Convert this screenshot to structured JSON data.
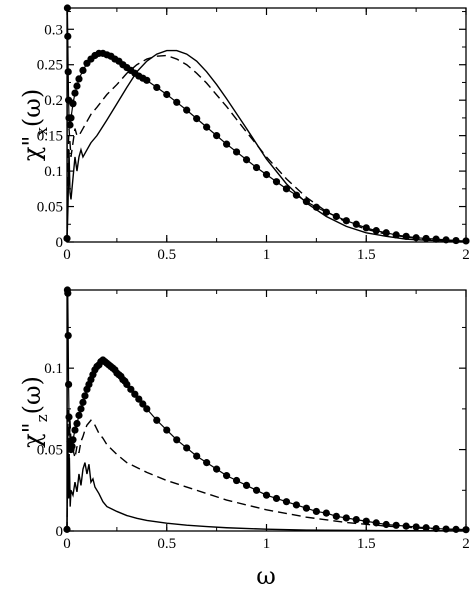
{
  "figure": {
    "xlabel": "ω"
  },
  "chart_data": [
    {
      "type": "line",
      "ylabel_main": "χ\"",
      "ylabel_sub": "x",
      "ylabel_tail": "(ω)",
      "xlabel": "ω",
      "xlim": [
        0,
        2
      ],
      "ylim": [
        0,
        0.33
      ],
      "x_ticks": [
        0,
        0.5,
        1,
        1.5,
        2
      ],
      "x_tick_labels": [
        "0",
        "0.5",
        "1",
        "1.5",
        "2"
      ],
      "y_ticks": [
        0,
        0.05,
        0.1,
        0.15,
        0.2,
        0.25,
        0.3
      ],
      "y_tick_labels": [
        "0",
        "0.05",
        "0.1",
        "0.15",
        "0.2",
        "0.25",
        "0.3"
      ],
      "grid": false,
      "series": [
        {
          "style": "dots",
          "x": [
            0.0,
            0.002,
            0.004,
            0.006,
            0.008,
            0.01,
            0.015,
            0.02,
            0.03,
            0.04,
            0.05,
            0.06,
            0.08,
            0.1,
            0.12,
            0.14,
            0.16,
            0.18,
            0.2,
            0.22,
            0.24,
            0.26,
            0.28,
            0.3,
            0.32,
            0.34,
            0.36,
            0.38,
            0.4,
            0.45,
            0.5,
            0.55,
            0.6,
            0.65,
            0.7,
            0.75,
            0.8,
            0.85,
            0.9,
            0.95,
            1.0,
            1.05,
            1.1,
            1.15,
            1.2,
            1.25,
            1.3,
            1.35,
            1.4,
            1.45,
            1.5,
            1.55,
            1.6,
            1.65,
            1.7,
            1.75,
            1.8,
            1.85,
            1.9,
            1.95,
            2.0
          ],
          "y": [
            0.005,
            0.33,
            0.29,
            0.24,
            0.2,
            0.175,
            0.165,
            0.175,
            0.195,
            0.21,
            0.22,
            0.23,
            0.242,
            0.252,
            0.258,
            0.263,
            0.266,
            0.266,
            0.264,
            0.262,
            0.258,
            0.255,
            0.25,
            0.246,
            0.242,
            0.238,
            0.234,
            0.231,
            0.228,
            0.218,
            0.208,
            0.197,
            0.186,
            0.174,
            0.162,
            0.15,
            0.138,
            0.127,
            0.116,
            0.105,
            0.095,
            0.085,
            0.075,
            0.066,
            0.057,
            0.049,
            0.042,
            0.036,
            0.03,
            0.025,
            0.02,
            0.016,
            0.013,
            0.01,
            0.008,
            0.006,
            0.005,
            0.004,
            0.003,
            0.002,
            0.0015
          ]
        },
        {
          "style": "dashed",
          "x": [
            0.0,
            0.005,
            0.01,
            0.015,
            0.02,
            0.03,
            0.04,
            0.05,
            0.06,
            0.08,
            0.1,
            0.12,
            0.15,
            0.2,
            0.25,
            0.3,
            0.35,
            0.4,
            0.45,
            0.5,
            0.55,
            0.6,
            0.65,
            0.7,
            0.8,
            0.9,
            1.0,
            1.1,
            1.2,
            1.3,
            1.4,
            1.5,
            1.6,
            1.7,
            1.8,
            1.9,
            2.0
          ],
          "y": [
            0.0,
            0.12,
            0.16,
            0.14,
            0.12,
            0.14,
            0.16,
            0.15,
            0.15,
            0.16,
            0.17,
            0.18,
            0.19,
            0.208,
            0.222,
            0.238,
            0.25,
            0.258,
            0.262,
            0.263,
            0.258,
            0.25,
            0.238,
            0.224,
            0.191,
            0.155,
            0.12,
            0.089,
            0.063,
            0.043,
            0.028,
            0.018,
            0.011,
            0.007,
            0.004,
            0.0025,
            0.0015
          ]
        },
        {
          "style": "solid",
          "x": [
            0.0,
            0.005,
            0.01,
            0.015,
            0.02,
            0.03,
            0.04,
            0.05,
            0.06,
            0.07,
            0.08,
            0.1,
            0.12,
            0.15,
            0.2,
            0.25,
            0.3,
            0.35,
            0.4,
            0.45,
            0.5,
            0.55,
            0.6,
            0.65,
            0.7,
            0.75,
            0.8,
            0.9,
            1.0,
            1.1,
            1.2,
            1.3,
            1.4,
            1.5,
            1.6,
            1.7,
            1.8,
            1.9,
            2.0
          ],
          "y": [
            0.0,
            0.05,
            0.13,
            0.07,
            0.06,
            0.09,
            0.12,
            0.1,
            0.12,
            0.13,
            0.12,
            0.13,
            0.14,
            0.15,
            0.172,
            0.195,
            0.218,
            0.24,
            0.255,
            0.265,
            0.27,
            0.27,
            0.265,
            0.255,
            0.24,
            0.222,
            0.202,
            0.16,
            0.117,
            0.082,
            0.055,
            0.036,
            0.022,
            0.013,
            0.008,
            0.004,
            0.0025,
            0.0015,
            0.001
          ]
        }
      ]
    },
    {
      "type": "line",
      "ylabel_main": "χ\"",
      "ylabel_sub": "z",
      "ylabel_tail": "(ω)",
      "xlabel": "ω",
      "xlim": [
        0,
        2
      ],
      "ylim": [
        0,
        0.148
      ],
      "x_ticks": [
        0,
        0.5,
        1,
        1.5,
        2
      ],
      "x_tick_labels": [
        "0",
        "0.5",
        "1",
        "1.5",
        "2"
      ],
      "y_ticks": [
        0,
        0.05,
        0.1
      ],
      "y_tick_labels": [
        "0",
        "0.05",
        "0.1"
      ],
      "grid": false,
      "series": [
        {
          "style": "dots",
          "x": [
            0.0,
            0.002,
            0.004,
            0.006,
            0.008,
            0.01,
            0.015,
            0.02,
            0.025,
            0.03,
            0.04,
            0.05,
            0.06,
            0.07,
            0.08,
            0.09,
            0.1,
            0.11,
            0.12,
            0.13,
            0.14,
            0.15,
            0.16,
            0.17,
            0.18,
            0.19,
            0.2,
            0.21,
            0.22,
            0.23,
            0.24,
            0.25,
            0.26,
            0.27,
            0.28,
            0.29,
            0.3,
            0.32,
            0.34,
            0.36,
            0.38,
            0.4,
            0.45,
            0.5,
            0.55,
            0.6,
            0.65,
            0.7,
            0.75,
            0.8,
            0.85,
            0.9,
            0.95,
            1.0,
            1.05,
            1.1,
            1.15,
            1.2,
            1.25,
            1.3,
            1.35,
            1.4,
            1.45,
            1.5,
            1.55,
            1.6,
            1.65,
            1.7,
            1.75,
            1.8,
            1.85,
            1.9,
            1.95,
            2.0
          ],
          "y": [
            0.001,
            0.148,
            0.146,
            0.12,
            0.09,
            0.07,
            0.055,
            0.05,
            0.052,
            0.056,
            0.062,
            0.066,
            0.071,
            0.075,
            0.079,
            0.083,
            0.087,
            0.09,
            0.093,
            0.096,
            0.099,
            0.101,
            0.102,
            0.104,
            0.105,
            0.104,
            0.103,
            0.102,
            0.101,
            0.1,
            0.099,
            0.097,
            0.096,
            0.095,
            0.093,
            0.092,
            0.09,
            0.087,
            0.084,
            0.081,
            0.078,
            0.075,
            0.068,
            0.062,
            0.056,
            0.051,
            0.046,
            0.042,
            0.038,
            0.034,
            0.031,
            0.028,
            0.025,
            0.022,
            0.02,
            0.018,
            0.016,
            0.014,
            0.012,
            0.011,
            0.009,
            0.008,
            0.007,
            0.006,
            0.005,
            0.004,
            0.0035,
            0.003,
            0.0025,
            0.002,
            0.0015,
            0.0012,
            0.001,
            0.0008
          ]
        },
        {
          "style": "dashed",
          "x": [
            0.0,
            0.005,
            0.01,
            0.015,
            0.02,
            0.03,
            0.04,
            0.05,
            0.06,
            0.07,
            0.08,
            0.09,
            0.1,
            0.12,
            0.14,
            0.16,
            0.18,
            0.2,
            0.25,
            0.3,
            0.35,
            0.4,
            0.5,
            0.6,
            0.7,
            0.8,
            0.9,
            1.0,
            1.2,
            1.4,
            1.6,
            1.8,
            2.0
          ],
          "y": [
            0.0,
            0.075,
            0.04,
            0.068,
            0.055,
            0.05,
            0.045,
            0.052,
            0.048,
            0.055,
            0.058,
            0.062,
            0.065,
            0.068,
            0.065,
            0.06,
            0.057,
            0.053,
            0.047,
            0.042,
            0.039,
            0.036,
            0.031,
            0.027,
            0.023,
            0.019,
            0.016,
            0.013,
            0.0085,
            0.0052,
            0.003,
            0.0016,
            0.0008
          ]
        },
        {
          "style": "solid",
          "x": [
            0.0,
            0.004,
            0.008,
            0.012,
            0.016,
            0.02,
            0.03,
            0.04,
            0.05,
            0.06,
            0.07,
            0.08,
            0.09,
            0.1,
            0.11,
            0.12,
            0.13,
            0.14,
            0.16,
            0.18,
            0.2,
            0.25,
            0.3,
            0.35,
            0.4,
            0.5,
            0.6,
            0.7,
            0.8,
            1.0,
            1.2,
            1.5,
            2.0
          ],
          "y": [
            0.0,
            0.062,
            0.02,
            0.045,
            0.015,
            0.025,
            0.022,
            0.03,
            0.024,
            0.035,
            0.028,
            0.038,
            0.042,
            0.035,
            0.041,
            0.03,
            0.032,
            0.027,
            0.023,
            0.018,
            0.015,
            0.012,
            0.0095,
            0.0078,
            0.0065,
            0.0048,
            0.0036,
            0.0027,
            0.002,
            0.0011,
            0.0006,
            0.0003,
            0.0001
          ]
        }
      ]
    }
  ]
}
